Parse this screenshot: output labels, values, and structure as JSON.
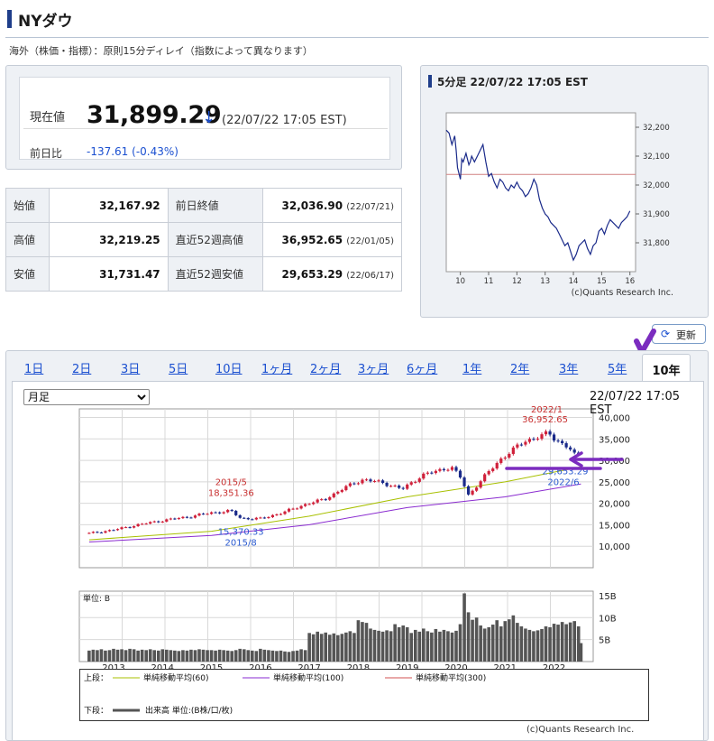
{
  "header": {
    "title": "NYダウ",
    "delay_note": "海外（株価・指標）：原則15分ディレイ（指数によって異なります）"
  },
  "quote": {
    "label": "現在値",
    "value": "31,899.29",
    "arrow": "↓",
    "time": "(22/07/22 17:05 EST)",
    "change_label": "前日比",
    "change": "-137.61 (-0.43%)",
    "down_color": "#1a4fd0"
  },
  "stats": [
    {
      "label": "始値",
      "value": "32,167.92",
      "label2": "前日終値",
      "value2": "32,036.90",
      "date2": "(22/07/21)"
    },
    {
      "label": "高値",
      "value": "32,219.25",
      "label2": "直近52週高値",
      "value2": "36,952.65",
      "date2": "(22/01/05)"
    },
    {
      "label": "安値",
      "value": "31,731.47",
      "label2": "直近52週安値",
      "value2": "29,653.29",
      "date2": "(22/06/17)"
    }
  ],
  "mini_chart": {
    "title": "5分足 22/07/22 17:05 EST",
    "credit": "(c)Quants Research Inc.",
    "y_ticks": [
      "32,200",
      "32,100",
      "32,000",
      "31,900",
      "31,800"
    ],
    "x_ticks": [
      "10",
      "11",
      "12",
      "13",
      "14",
      "15",
      "16"
    ],
    "prev_close_line": 32036.9
  },
  "refresh": {
    "label": "更新",
    "icon": "refresh-icon"
  },
  "tabs": [
    "1日",
    "2日",
    "3日",
    "5日",
    "10日",
    "1ヶ月",
    "2ヶ月",
    "3ヶ月",
    "6ヶ月",
    "1年",
    "2年",
    "3年",
    "5年",
    "10年"
  ],
  "active_tab": "10年",
  "main_chart": {
    "period_options": [
      "月足"
    ],
    "selected_period": "月足",
    "time": "22/07/22 17:05 EST",
    "credit": "(c)Quants Research Inc."
  },
  "chart_data": [
    {
      "type": "line",
      "name": "5分足",
      "x_ticks": [
        10,
        11,
        12,
        13,
        14,
        15,
        16
      ],
      "y_ticks": [
        32200,
        32100,
        32000,
        31900,
        31800
      ],
      "ylim": [
        31700,
        32250
      ],
      "xlim": [
        9.5,
        16.2
      ],
      "reference_line": 32036.9,
      "x": [
        9.5,
        9.6,
        9.65,
        9.7,
        9.8,
        9.85,
        9.9,
        10.0,
        10.05,
        10.1,
        10.2,
        10.3,
        10.35,
        10.4,
        10.5,
        10.6,
        10.7,
        10.8,
        10.85,
        10.9,
        11.0,
        11.1,
        11.2,
        11.3,
        11.4,
        11.5,
        11.6,
        11.7,
        11.8,
        11.9,
        12.0,
        12.1,
        12.2,
        12.3,
        12.4,
        12.5,
        12.6,
        12.7,
        12.8,
        12.9,
        13.0,
        13.1,
        13.2,
        13.3,
        13.4,
        13.5,
        13.6,
        13.7,
        13.8,
        13.9,
        14.0,
        14.1,
        14.2,
        14.3,
        14.4,
        14.5,
        14.6,
        14.7,
        14.8,
        14.9,
        15.0,
        15.1,
        15.2,
        15.3,
        15.4,
        15.5,
        15.6,
        15.7,
        15.8,
        15.9,
        16.0
      ],
      "y": [
        32190,
        32180,
        32160,
        32140,
        32170,
        32120,
        32060,
        32020,
        32090,
        32080,
        32110,
        32070,
        32080,
        32100,
        32080,
        32100,
        32120,
        32140,
        32110,
        32080,
        32030,
        32040,
        32010,
        31990,
        32020,
        32010,
        31990,
        31980,
        32000,
        31990,
        32010,
        31990,
        31980,
        31960,
        31970,
        31990,
        32020,
        32000,
        31950,
        31920,
        31900,
        31890,
        31870,
        31860,
        31850,
        31830,
        31810,
        31790,
        31800,
        31770,
        31740,
        31760,
        31790,
        31800,
        31810,
        31780,
        31760,
        31790,
        31800,
        31840,
        31850,
        31830,
        31860,
        31880,
        31870,
        31860,
        31850,
        31870,
        31880,
        31890,
        31910
      ]
    },
    {
      "type": "candlestick",
      "name": "月足",
      "x_ticks": [
        2013,
        2014,
        2015,
        2016,
        2017,
        2018,
        2019,
        2020,
        2021,
        2022
      ],
      "y_ticks": [
        40000,
        35000,
        30000,
        25000,
        20000,
        15000,
        10000
      ],
      "ylim": [
        5000,
        42000
      ],
      "xlim": [
        2012.3,
        2022.8
      ],
      "ma_labels": [
        "単純移動平均(60)",
        "単純移動平均(100)",
        "単純移動平均(300)"
      ],
      "ma_colors": [
        "#a8c000",
        "#8a2bd0",
        "#d05050"
      ],
      "annotations": [
        {
          "text": "2015/5",
          "x": 2015.4,
          "y": 18351.36
        },
        {
          "text": "18,351.36",
          "x": 2015.4,
          "y": 18351.36
        },
        {
          "text": "15,370.33",
          "x": 2015.6,
          "y": 15370.33
        },
        {
          "text": "2015/8",
          "x": 2015.6,
          "y": 15370.33
        },
        {
          "text": "2022/1",
          "x": 2022.0,
          "y": 36952.65
        },
        {
          "text": "36,952.65",
          "x": 2022.0,
          "y": 36952.65
        },
        {
          "text": "29,653.29",
          "x": 2022.45,
          "y": 29653.29
        },
        {
          "text": "2022/6",
          "x": 2022.45,
          "y": 29653.29
        }
      ],
      "close_points": [
        [
          2012.5,
          13000
        ],
        [
          2013.0,
          13800
        ],
        [
          2013.5,
          15000
        ],
        [
          2014.0,
          16000
        ],
        [
          2014.5,
          16800
        ],
        [
          2015.0,
          17800
        ],
        [
          2015.4,
          18200
        ],
        [
          2015.6,
          16500
        ],
        [
          2016.0,
          16400
        ],
        [
          2016.5,
          18000
        ],
        [
          2016.9,
          19700
        ],
        [
          2017.3,
          20900
        ],
        [
          2017.9,
          24700
        ],
        [
          2018.1,
          25500
        ],
        [
          2018.5,
          24800
        ],
        [
          2018.9,
          23300
        ],
        [
          2019.3,
          26500
        ],
        [
          2019.9,
          28500
        ],
        [
          2020.1,
          25800
        ],
        [
          2020.25,
          21900
        ],
        [
          2020.6,
          26500
        ],
        [
          2020.9,
          30200
        ],
        [
          2021.4,
          34500
        ],
        [
          2021.9,
          36300
        ],
        [
          2022.0,
          35100
        ],
        [
          2022.3,
          33000
        ],
        [
          2022.45,
          30700
        ],
        [
          2022.55,
          31900
        ]
      ],
      "ma60": [
        [
          2012.5,
          11500
        ],
        [
          2015.0,
          13500
        ],
        [
          2017.0,
          17000
        ],
        [
          2019.0,
          21500
        ],
        [
          2021.0,
          25000
        ],
        [
          2022.55,
          28500
        ]
      ],
      "ma100": [
        [
          2012.5,
          11000
        ],
        [
          2015.0,
          12500
        ],
        [
          2017.0,
          15000
        ],
        [
          2019.0,
          19000
        ],
        [
          2021.0,
          21500
        ],
        [
          2022.55,
          24500
        ]
      ]
    },
    {
      "type": "bar",
      "name": "出来高",
      "unit_label": "単位: B",
      "y_ticks": [
        "15B",
        "10B",
        "5B"
      ],
      "ylim": [
        0,
        16
      ],
      "xlim": [
        2012.3,
        2022.8
      ],
      "x": [
        2012.5,
        2012.583,
        2012.667,
        2012.75,
        2012.833,
        2012.917,
        2013.0,
        2013.083,
        2013.167,
        2013.25,
        2013.333,
        2013.417,
        2013.5,
        2013.583,
        2013.667,
        2013.75,
        2013.833,
        2013.917,
        2014.0,
        2014.083,
        2014.167,
        2014.25,
        2014.333,
        2014.417,
        2014.5,
        2014.583,
        2014.667,
        2014.75,
        2014.833,
        2014.917,
        2015.0,
        2015.083,
        2015.167,
        2015.25,
        2015.333,
        2015.417,
        2015.5,
        2015.583,
        2015.667,
        2015.75,
        2015.833,
        2015.917,
        2016.0,
        2016.083,
        2016.167,
        2016.25,
        2016.333,
        2016.417,
        2016.5,
        2016.583,
        2016.667,
        2016.75,
        2016.833,
        2016.917,
        2017.0,
        2017.083,
        2017.167,
        2017.25,
        2017.333,
        2017.417,
        2017.5,
        2017.583,
        2017.667,
        2017.75,
        2017.833,
        2017.917,
        2018.0,
        2018.083,
        2018.167,
        2018.25,
        2018.333,
        2018.417,
        2018.5,
        2018.583,
        2018.667,
        2018.75,
        2018.833,
        2018.917,
        2019.0,
        2019.083,
        2019.167,
        2019.25,
        2019.333,
        2019.417,
        2019.5,
        2019.583,
        2019.667,
        2019.75,
        2019.833,
        2019.917,
        2020.0,
        2020.083,
        2020.167,
        2020.25,
        2020.333,
        2020.417,
        2020.5,
        2020.583,
        2020.667,
        2020.75,
        2020.833,
        2020.917,
        2021.0,
        2021.083,
        2021.167,
        2021.25,
        2021.333,
        2021.417,
        2021.5,
        2021.583,
        2021.667,
        2021.75,
        2021.833,
        2021.917,
        2022.0,
        2022.083,
        2022.167,
        2022.25,
        2022.333,
        2022.417,
        2022.5,
        2022.55
      ],
      "values": [
        2.5,
        2.7,
        2.6,
        2.8,
        2.5,
        2.6,
        2.9,
        2.7,
        2.8,
        2.6,
        2.9,
        2.8,
        2.5,
        2.7,
        2.6,
        2.8,
        2.6,
        2.5,
        2.8,
        2.7,
        2.6,
        2.5,
        2.4,
        2.6,
        2.5,
        2.7,
        2.6,
        2.8,
        2.7,
        2.6,
        2.6,
        2.5,
        2.7,
        2.6,
        2.5,
        2.4,
        2.6,
        2.9,
        2.8,
        2.6,
        2.5,
        2.4,
        2.9,
        2.7,
        2.6,
        2.5,
        2.4,
        2.5,
        2.3,
        2.2,
        2.4,
        2.5,
        2.8,
        2.6,
        6.5,
        6.2,
        6.8,
        6.3,
        6.6,
        6.1,
        6.4,
        6.0,
        6.3,
        6.6,
        6.9,
        6.5,
        9.4,
        9.0,
        8.8,
        7.5,
        7.2,
        7.0,
        6.8,
        7.1,
        6.9,
        8.5,
        7.8,
        8.2,
        7.8,
        6.5,
        7.2,
        6.8,
        7.5,
        6.9,
        6.6,
        7.4,
        6.8,
        7.2,
        6.9,
        6.6,
        7.0,
        8.5,
        15.5,
        11.2,
        9.5,
        10.0,
        8.2,
        7.5,
        7.8,
        8.4,
        9.4,
        8.0,
        9.2,
        9.6,
        10.5,
        8.8,
        8.0,
        7.5,
        7.2,
        6.9,
        7.1,
        7.4,
        8.0,
        7.8,
        8.6,
        8.4,
        9.0,
        8.5,
        8.9,
        9.2,
        8.0,
        4.2
      ]
    }
  ],
  "volume_axis": {
    "x_labels": [
      "2013",
      "2014",
      "2015",
      "2016",
      "2017",
      "2018",
      "2019",
      "2020",
      "2021",
      "2022"
    ]
  },
  "legend": {
    "upper_label": "上段：",
    "lower_label": "下段：",
    "items": [
      "単純移動平均(60)",
      "単純移動平均(100)",
      "単純移動平均(300)"
    ],
    "volume_item": "出来高 単位:(B株/口/枚)",
    "colors": {
      "ma60": "#a8c000",
      "ma100": "#8a2bd0",
      "ma300": "#d05050",
      "volume": "#555555"
    }
  },
  "marker_colors": {
    "up": "#d0203a",
    "down": "#1a2a8a",
    "annotation_red": "#c83030",
    "annotation_blue": "#2a5ad0",
    "arrow": "#7b2cbf"
  }
}
